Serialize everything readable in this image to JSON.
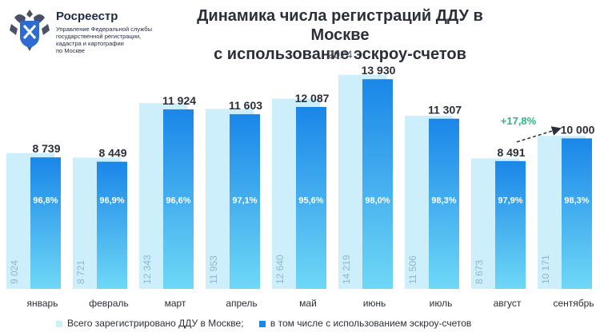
{
  "logo": {
    "title": "Росреестр",
    "subtitle_lines": [
      "Управление Федеральной службы",
      "государственной регистрации,",
      "кадастра и картографии",
      "по Москве"
    ]
  },
  "colors": {
    "total_bar": "#cdeffb",
    "escrow_top": "#1a86e8",
    "escrow_bottom": "#6fd8f6",
    "growth": "#2bb68a"
  },
  "chart_data": {
    "type": "bar",
    "title": "Динамика числа регистраций ДДУ в Москве с использование эскроу-счетов",
    "title_lines": [
      "Динамика числа регистраций ДДУ в Москве",
      "с использование эскроу-счетов"
    ],
    "subtitle": "2024",
    "categories": [
      "январь",
      "февраль",
      "март",
      "апрель",
      "май",
      "июнь",
      "июль",
      "август",
      "сентябрь"
    ],
    "series": [
      {
        "name": "Всего зарегистрировано  ДДУ в Москве;",
        "values": [
          9024,
          8721,
          12343,
          11953,
          12640,
          14219,
          11506,
          8673,
          10171
        ],
        "labels": [
          "9 024",
          "8 721",
          "12 343",
          "11 953",
          "12 640",
          "14 219",
          "11 506",
          "8 673",
          "10 171"
        ]
      },
      {
        "name": "в том числе с использованием эскроу-счетов",
        "values": [
          8739,
          8449,
          11924,
          11603,
          12087,
          13930,
          11307,
          8491,
          10000
        ],
        "labels": [
          "8 739",
          "8 449",
          "11 924",
          "11 603",
          "12 087",
          "13 930",
          "11 307",
          "8 491",
          "10 000"
        ],
        "shares": [
          "96,8%",
          "96,9%",
          "96,6%",
          "97,1%",
          "95,6%",
          "98,0%",
          "98,3%",
          "97,9%",
          "98,3%"
        ]
      }
    ],
    "annotation": {
      "text": "+17,8%",
      "from": "август",
      "to": "сентябрь"
    },
    "ylim": [
      0,
      15000
    ],
    "grid": false,
    "legend_position": "bottom"
  }
}
